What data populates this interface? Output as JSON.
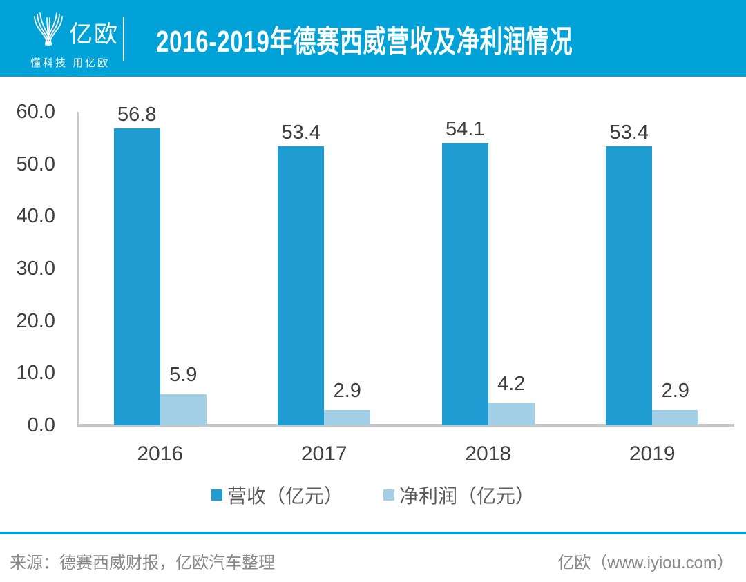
{
  "header": {
    "logo_text": "亿欧",
    "logo_tagline": "懂科技 用亿欧",
    "title": "2016-2019年德赛西威营收及净利润情况"
  },
  "colors": {
    "accent_cyan": "#00A2D8",
    "revenue_bar": "#1F9CD1",
    "profit_bar": "#A3D0E6",
    "axis_line": "#C7C7C7",
    "tick_text": "#3F3F3F",
    "legend_text": "#595959",
    "footer_text": "#8A8A8A",
    "title_text": "#FFFFFF"
  },
  "chart_data": {
    "type": "bar",
    "title": "2016-2019年德赛西威营收及净利润情况",
    "categories": [
      "2016",
      "2017",
      "2018",
      "2019"
    ],
    "series": [
      {
        "name": "营收（亿元）",
        "values": [
          56.8,
          53.4,
          54.1,
          53.4
        ],
        "color": "#1F9CD1"
      },
      {
        "name": "净利润（亿元）",
        "values": [
          5.9,
          2.9,
          4.2,
          2.9
        ],
        "color": "#A3D0E6"
      }
    ],
    "xlabel": "",
    "ylabel": "",
    "ylim": [
      0,
      60
    ],
    "ytick_labels": [
      "0.0",
      "10.0",
      "20.0",
      "30.0",
      "40.0",
      "50.0",
      "60.0"
    ],
    "grid": false,
    "legend_position": "bottom",
    "value_labels": true
  },
  "footer": {
    "source": "来源：德赛西威财报，亿欧汽车整理",
    "brand": "亿欧（www.iyiou.com）"
  }
}
